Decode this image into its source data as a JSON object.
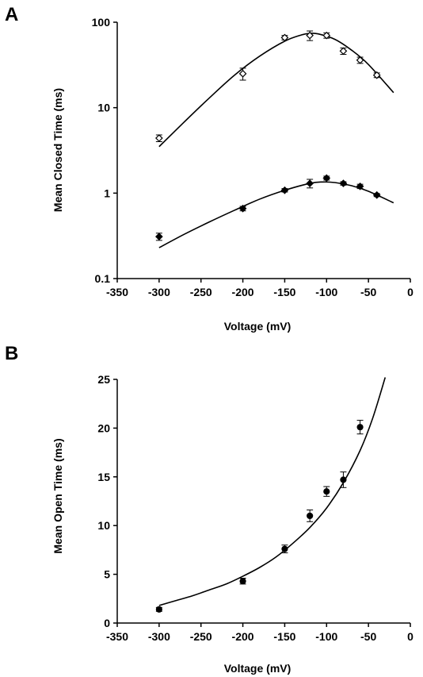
{
  "chart_data": [
    {
      "panel": "A",
      "type": "scatter",
      "xlabel": "Voltage (mV)",
      "ylabel": "Mean Closed Time (ms)",
      "yscale": "log",
      "xlim": [
        -350,
        0
      ],
      "ylim": [
        0.1,
        100
      ],
      "xticks": [
        -350,
        -300,
        -250,
        -200,
        -150,
        -100,
        -50,
        0
      ],
      "yticks": [
        0.1,
        1,
        10,
        100
      ],
      "ytick_labels": [
        "0.1",
        "1",
        "10",
        "100"
      ],
      "grid": false,
      "series": [
        {
          "marker": "open-diamond",
          "x": [
            -300,
            -200,
            -150,
            -120,
            -100,
            -80,
            -60,
            -40
          ],
          "y": [
            4.4,
            25,
            66,
            70,
            70,
            46,
            36,
            24
          ],
          "err": [
            0.4,
            4,
            4,
            9,
            5,
            4,
            3,
            1.5
          ],
          "fit": {
            "x": [
              -300,
              -270,
              -240,
              -210,
              -180,
              -150,
              -130,
              -120,
              -110,
              -90,
              -70,
              -50,
              -20
            ],
            "y": [
              3.5,
              6.8,
              13,
              24,
              40,
              60,
              71,
              74,
              73,
              63,
              47,
              32,
              15
            ]
          }
        },
        {
          "marker": "filled-diamond",
          "x": [
            -300,
            -200,
            -150,
            -120,
            -100,
            -80,
            -60,
            -40
          ],
          "y": [
            0.31,
            0.66,
            1.08,
            1.3,
            1.5,
            1.3,
            1.2,
            0.95
          ],
          "err": [
            0.03,
            0.04,
            0.05,
            0.15,
            0.08,
            0.06,
            0.07,
            0.04
          ],
          "fit": {
            "x": [
              -300,
              -270,
              -240,
              -210,
              -180,
              -150,
              -120,
              -105,
              -90,
              -70,
              -50,
              -20
            ],
            "y": [
              0.23,
              0.33,
              0.46,
              0.63,
              0.85,
              1.08,
              1.3,
              1.35,
              1.33,
              1.22,
              1.05,
              0.77
            ]
          }
        }
      ]
    },
    {
      "panel": "B",
      "type": "scatter",
      "xlabel": "Voltage (mV)",
      "ylabel": "Mean Open Time (ms)",
      "xlim": [
        -350,
        0
      ],
      "ylim": [
        0,
        25
      ],
      "xticks": [
        -350,
        -300,
        -250,
        -200,
        -150,
        -100,
        -50,
        0
      ],
      "yticks": [
        0,
        5,
        10,
        15,
        20,
        25
      ],
      "grid": false,
      "series": [
        {
          "marker": "filled-circle",
          "x": [
            -300,
            -200,
            -150,
            -120,
            -100,
            -80,
            -60
          ],
          "y": [
            1.4,
            4.3,
            7.6,
            11,
            13.5,
            14.7,
            20.1
          ],
          "err": [
            0.2,
            0.3,
            0.4,
            0.6,
            0.5,
            0.8,
            0.7
          ],
          "fit": {
            "x": [
              -300,
              -280,
              -260,
              -240,
              -220,
              -200,
              -180,
              -160,
              -140,
              -120,
              -100,
              -80,
              -60,
              -45,
              -30
            ],
            "y": [
              1.8,
              2.3,
              2.8,
              3.4,
              4.0,
              4.8,
              5.7,
              6.8,
              8.2,
              9.8,
              11.8,
              14.4,
              17.7,
              21.0,
              25.2
            ]
          }
        }
      ]
    }
  ]
}
